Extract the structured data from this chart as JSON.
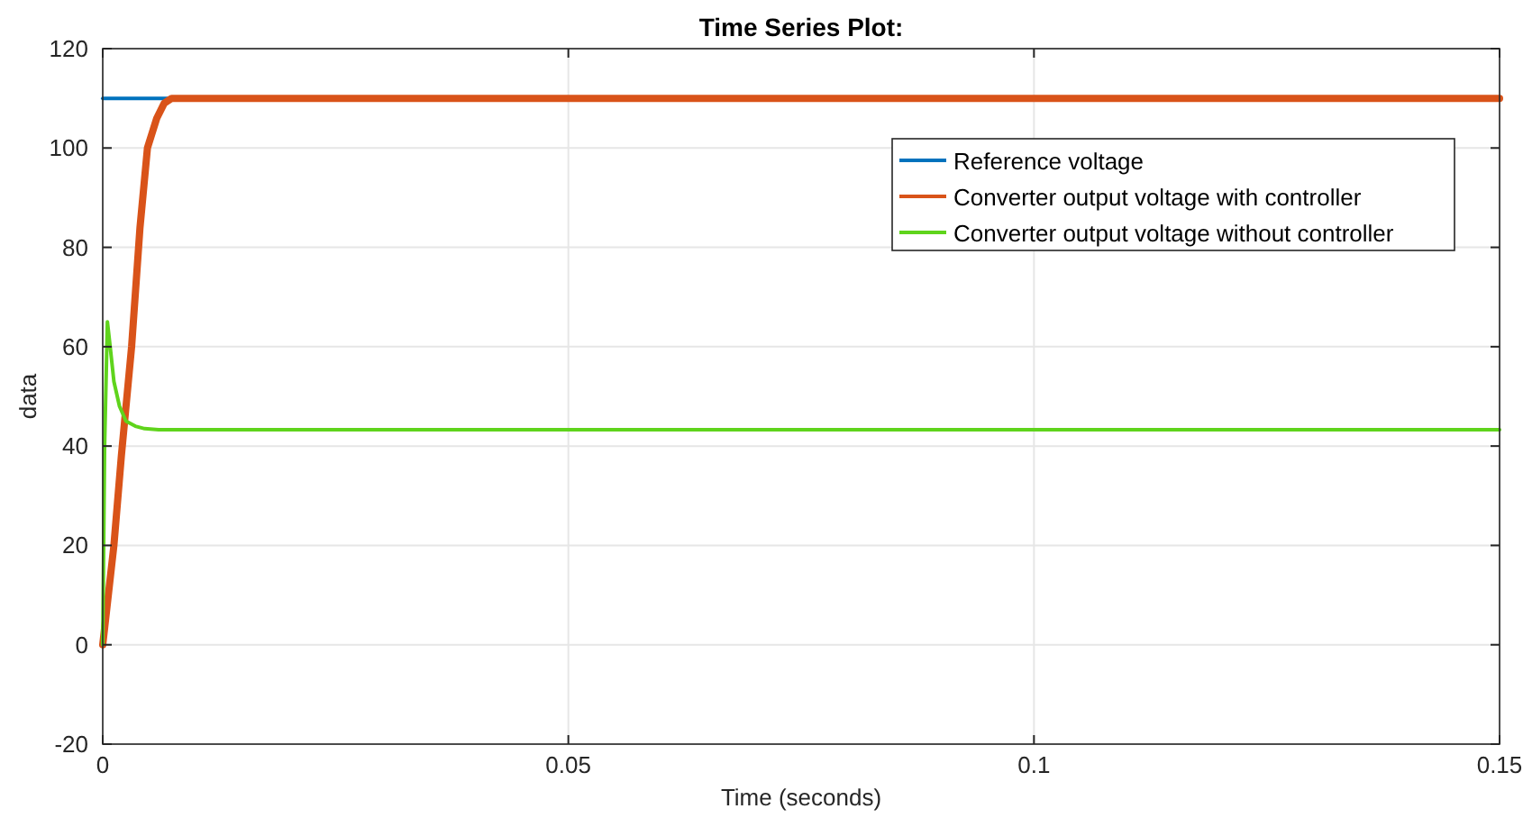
{
  "chart_data": {
    "type": "line",
    "title": "Time Series Plot:",
    "xlabel": "Time (seconds)",
    "ylabel": "data",
    "xlim": [
      0,
      0.15
    ],
    "xticks": [
      0,
      0.05,
      0.1,
      0.15
    ],
    "ylim": [
      -20,
      120
    ],
    "yticks": [
      -20,
      0,
      20,
      40,
      60,
      80,
      100,
      120
    ],
    "grid": true,
    "legend": "top right",
    "line_style": "solid",
    "marker": "none",
    "series": [
      {
        "name": "Reference voltage",
        "color": "#0072bd",
        "x": [
          0,
          0.0075
        ],
        "values": [
          110,
          110
        ]
      },
      {
        "name": "Converter output voltage with controller",
        "color": "#d95319",
        "x": [
          0,
          0.0012,
          0.002,
          0.0031,
          0.004,
          0.0048,
          0.0058,
          0.0066,
          0.0074,
          0.01,
          0.02,
          0.04,
          0.06,
          0.08,
          0.1,
          0.12,
          0.15
        ],
        "values": [
          0,
          20,
          38,
          60,
          84,
          100,
          106,
          109,
          110,
          110,
          110,
          110,
          110,
          110,
          110,
          110,
          110
        ]
      },
      {
        "name": "Converter output voltage without controller",
        "color": "#5fd41c",
        "x": [
          0,
          0.0002,
          0.0005,
          0.0008,
          0.0012,
          0.0018,
          0.0025,
          0.0035,
          0.0045,
          0.006,
          0.01,
          0.05,
          0.1,
          0.15
        ],
        "values": [
          0,
          40,
          65,
          60,
          53,
          48,
          45,
          44,
          43.5,
          43.3,
          43.3,
          43.3,
          43.3,
          43.3
        ]
      }
    ]
  }
}
